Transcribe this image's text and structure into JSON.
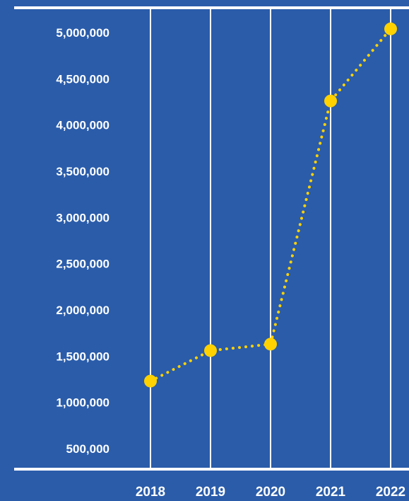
{
  "colors": {
    "background": "#2a5caa",
    "gridline": "#ffffff",
    "axis": "#ffffff",
    "series": "#ffd200",
    "text": "#ffffff"
  },
  "chart_data": {
    "type": "line",
    "title": "",
    "xlabel": "",
    "ylabel": "",
    "x": [
      "2018",
      "2019",
      "2020",
      "2021",
      "2022"
    ],
    "series": [
      {
        "values": [
          1230000,
          1560000,
          1630000,
          4260000,
          5040000
        ],
        "line_style": "dotted",
        "marker": "circle"
      }
    ],
    "y_ticks": [
      "500,000",
      "1,000,000",
      "1,500,000",
      "2,000,000",
      "2,500,000",
      "3,000,000",
      "3,500,000",
      "4,000,000",
      "4,500,000",
      "5,000,000"
    ],
    "ylim": [
      0,
      5100000
    ],
    "grid": "vertical",
    "legend": "none"
  }
}
